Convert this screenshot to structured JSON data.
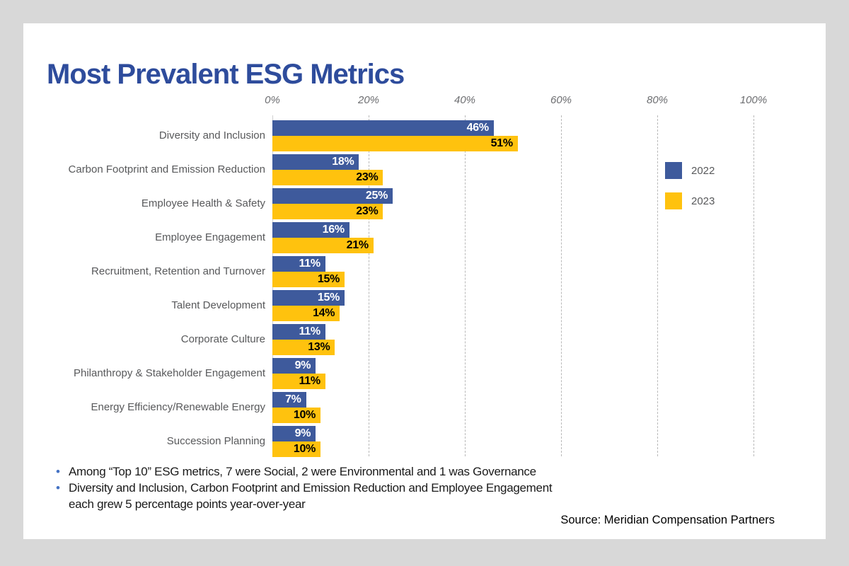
{
  "page": {
    "background_color": "#d8d8d8",
    "card_color": "#ffffff"
  },
  "header": {
    "title": "Most Prevalent ESG Metrics",
    "title_color": "#2e4c9c"
  },
  "legend": {
    "items": [
      {
        "label": "2022",
        "color": "#3e5a9c"
      },
      {
        "label": "2023",
        "color": "#ffc20e"
      }
    ]
  },
  "footnotes": {
    "bullet_color": "#4472c4",
    "items": [
      "Among “Top 10” ESG metrics, 7 were Social, 2 were Environmental and 1 was Governance",
      "Diversity and Inclusion, Carbon Footprint and Emission Reduction and Employee Engagement each grew 5 percentage points year-over-year"
    ]
  },
  "source": "Source: Meridian Compensation Partners",
  "chart_data": {
    "type": "bar",
    "orientation": "horizontal",
    "title": "Most Prevalent ESG Metrics",
    "categories": [
      "Diversity and Inclusion",
      "Carbon Footprint and Emission Reduction",
      "Employee Health & Safety",
      "Employee Engagement",
      "Recruitment, Retention and Turnover",
      "Talent Development",
      "Corporate Culture",
      "Philanthropy & Stakeholder Engagement",
      "Energy Efficiency/Renewable Energy",
      "Succession Planning"
    ],
    "series": [
      {
        "name": "2022",
        "color": "#3e5a9c",
        "label_color": "#ffffff",
        "values": [
          46,
          18,
          25,
          16,
          11,
          15,
          11,
          9,
          7,
          9
        ]
      },
      {
        "name": "2023",
        "color": "#ffc20e",
        "label_color": "#000000",
        "values": [
          51,
          23,
          23,
          21,
          15,
          14,
          13,
          11,
          10,
          10
        ]
      }
    ],
    "value_suffix": "%",
    "x_ticks": [
      "0%",
      "20%",
      "40%",
      "60%",
      "80%",
      "100%"
    ],
    "xlim": [
      0,
      100
    ],
    "gridlines": "vertical-dashed",
    "legend_position": "right",
    "grid": true
  }
}
